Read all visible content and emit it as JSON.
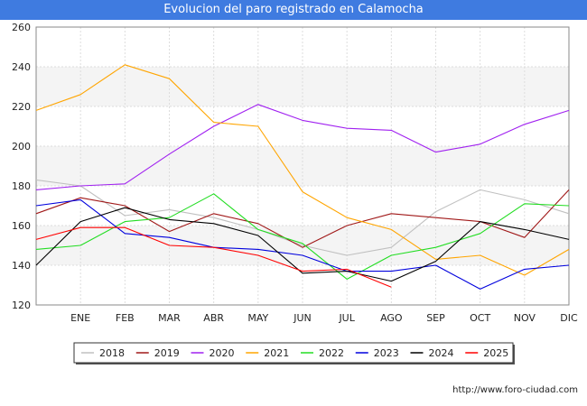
{
  "chart_data": {
    "type": "line",
    "title": "Evolucion del paro registrado en Calamocha",
    "xlabel": "",
    "ylabel": "",
    "categories": [
      "DIC",
      "ENE",
      "FEB",
      "MAR",
      "ABR",
      "MAY",
      "JUN",
      "JUL",
      "AGO",
      "SEP",
      "OCT",
      "NOV",
      "DIC"
    ],
    "x_tick_labels": [
      "",
      "ENE",
      "FEB",
      "MAR",
      "ABR",
      "MAY",
      "JUN",
      "JUL",
      "AGO",
      "SEP",
      "OCT",
      "NOV",
      "DIC"
    ],
    "ylim": [
      120,
      260
    ],
    "yticks": [
      120,
      140,
      160,
      180,
      200,
      220,
      240,
      260
    ],
    "grid": true,
    "legend_position": "bottom",
    "series": [
      {
        "name": "2018",
        "color": "#c0c0c0",
        "values": [
          183,
          180,
          165,
          168,
          164,
          158,
          150,
          145,
          149,
          167,
          178,
          173,
          166
        ]
      },
      {
        "name": "2019",
        "color": "#a01818",
        "values": [
          166,
          174,
          170,
          157,
          166,
          161,
          149,
          160,
          166,
          164,
          162,
          154,
          178
        ]
      },
      {
        "name": "2020",
        "color": "#a020f0",
        "values": [
          178,
          180,
          181,
          196,
          210,
          221,
          213,
          209,
          208,
          197,
          201,
          211,
          218
        ]
      },
      {
        "name": "2021",
        "color": "#ffa500",
        "values": [
          218,
          226,
          241,
          234,
          212,
          210,
          177,
          164,
          158,
          143,
          145,
          135,
          148
        ]
      },
      {
        "name": "2022",
        "color": "#22dd22",
        "values": [
          148,
          150,
          162,
          164,
          176,
          158,
          151,
          133,
          145,
          149,
          156,
          171,
          170
        ]
      },
      {
        "name": "2023",
        "color": "#0000dd",
        "values": [
          170,
          173,
          156,
          154,
          149,
          148,
          145,
          137,
          137,
          140,
          128,
          138,
          140
        ]
      },
      {
        "name": "2024",
        "color": "#000000",
        "values": [
          140,
          162,
          169,
          163,
          161,
          155,
          136,
          137,
          132,
          142,
          162,
          158,
          153
        ]
      },
      {
        "name": "2025",
        "color": "#ff0000",
        "values": [
          153,
          159,
          159,
          150,
          149,
          145,
          137,
          138,
          129,
          null,
          null,
          null,
          null
        ]
      }
    ]
  },
  "footer": {
    "url": "http://www.foro-ciudad.com"
  }
}
